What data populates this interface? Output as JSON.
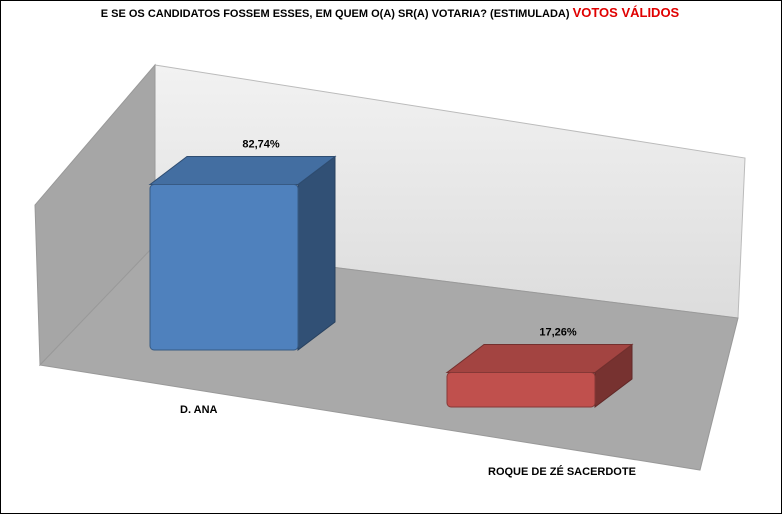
{
  "chart_data": {
    "type": "bar3d",
    "title": "E SE OS CANDIDATOS FOSSEM ESSES, EM QUEM O(A) SR(A) VOTARIA? (ESTIMULADA)",
    "title_highlight": "VOTOS VÁLIDOS",
    "categories": [
      "D. ANA",
      "ROQUE DE ZÉ SACERDOTE"
    ],
    "values": [
      82.74,
      17.26
    ],
    "value_labels": [
      "82,74%",
      "17,26%"
    ],
    "colors": [
      "#4f81bd",
      "#c0504d"
    ]
  }
}
